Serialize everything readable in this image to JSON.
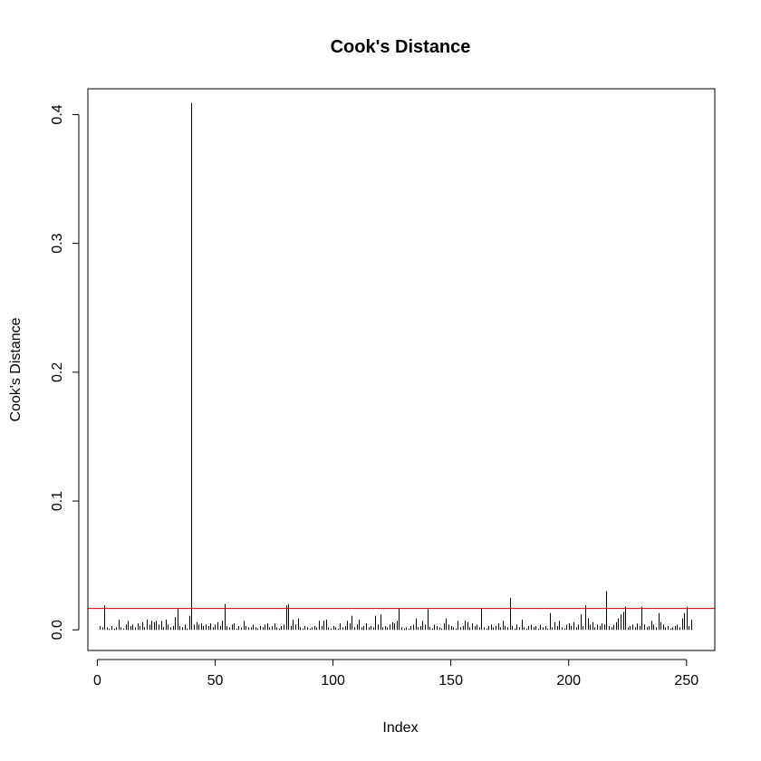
{
  "chart_data": {
    "type": "bar",
    "title": "Cook's Distance",
    "xlabel": "Index",
    "ylabel": "Cook's Distance",
    "xlim": [
      -4,
      262
    ],
    "ylim": [
      -0.016,
      0.42
    ],
    "xticks": [
      0,
      50,
      100,
      150,
      200,
      250
    ],
    "yticks": [
      0.0,
      0.1,
      0.2,
      0.3,
      0.4
    ],
    "ytick_labels": [
      "0.0",
      "0.1",
      "0.2",
      "0.3",
      "0.4"
    ],
    "grid": false,
    "threshold": {
      "value": 0.0166,
      "color": "#cc0000"
    },
    "bar_color": "#000000",
    "points": [
      [
        1,
        0.003
      ],
      [
        2,
        0.002
      ],
      [
        3,
        0.019
      ],
      [
        4,
        0.002
      ],
      [
        5,
        0.001
      ],
      [
        6,
        0.003
      ],
      [
        7,
        0.001
      ],
      [
        8,
        0.002
      ],
      [
        9,
        0.008
      ],
      [
        10,
        0.002
      ],
      [
        11,
        0.001
      ],
      [
        12,
        0.004
      ],
      [
        13,
        0.007
      ],
      [
        14,
        0.003
      ],
      [
        15,
        0.004
      ],
      [
        16,
        0.002
      ],
      [
        17,
        0.005
      ],
      [
        18,
        0.003
      ],
      [
        19,
        0.006
      ],
      [
        20,
        0.002
      ],
      [
        21,
        0.008
      ],
      [
        22,
        0.004
      ],
      [
        23,
        0.007
      ],
      [
        24,
        0.006
      ],
      [
        25,
        0.007
      ],
      [
        26,
        0.004
      ],
      [
        27,
        0.007
      ],
      [
        28,
        0.002
      ],
      [
        29,
        0.008
      ],
      [
        30,
        0.004
      ],
      [
        31,
        0.002
      ],
      [
        32,
        0.003
      ],
      [
        33,
        0.01
      ],
      [
        34,
        0.016
      ],
      [
        35,
        0.003
      ],
      [
        36,
        0.002
      ],
      [
        37,
        0.004
      ],
      [
        38,
        0.001
      ],
      [
        39,
        0.011
      ],
      [
        40,
        0.409
      ],
      [
        41,
        0.004
      ],
      [
        42,
        0.006
      ],
      [
        43,
        0.004
      ],
      [
        44,
        0.005
      ],
      [
        45,
        0.003
      ],
      [
        46,
        0.004
      ],
      [
        47,
        0.003
      ],
      [
        48,
        0.005
      ],
      [
        49,
        0.002
      ],
      [
        50,
        0.004
      ],
      [
        51,
        0.006
      ],
      [
        52,
        0.003
      ],
      [
        53,
        0.007
      ],
      [
        54,
        0.02
      ],
      [
        55,
        0.003
      ],
      [
        56,
        0.002
      ],
      [
        57,
        0.004
      ],
      [
        58,
        0.005
      ],
      [
        59,
        0.001
      ],
      [
        60,
        0.003
      ],
      [
        61,
        0.002
      ],
      [
        62,
        0.007
      ],
      [
        63,
        0.003
      ],
      [
        64,
        0.002
      ],
      [
        65,
        0.002
      ],
      [
        66,
        0.004
      ],
      [
        67,
        0.002
      ],
      [
        68,
        0.001
      ],
      [
        69,
        0.003
      ],
      [
        70,
        0.002
      ],
      [
        71,
        0.004
      ],
      [
        72,
        0.005
      ],
      [
        73,
        0.002
      ],
      [
        74,
        0.003
      ],
      [
        75,
        0.005
      ],
      [
        76,
        0.002
      ],
      [
        77,
        0.001
      ],
      [
        78,
        0.003
      ],
      [
        79,
        0.004
      ],
      [
        80,
        0.019
      ],
      [
        81,
        0.02
      ],
      [
        82,
        0.003
      ],
      [
        83,
        0.008
      ],
      [
        84,
        0.004
      ],
      [
        85,
        0.009
      ],
      [
        86,
        0.002
      ],
      [
        87,
        0.001
      ],
      [
        88,
        0.003
      ],
      [
        89,
        0.002
      ],
      [
        90,
        0.001
      ],
      [
        91,
        0.002
      ],
      [
        92,
        0.003
      ],
      [
        93,
        0.002
      ],
      [
        94,
        0.007
      ],
      [
        95,
        0.003
      ],
      [
        96,
        0.007
      ],
      [
        97,
        0.008
      ],
      [
        98,
        0.002
      ],
      [
        99,
        0.001
      ],
      [
        100,
        0.003
      ],
      [
        101,
        0.002
      ],
      [
        102,
        0.001
      ],
      [
        103,
        0.005
      ],
      [
        104,
        0.002
      ],
      [
        105,
        0.003
      ],
      [
        106,
        0.007
      ],
      [
        107,
        0.005
      ],
      [
        108,
        0.011
      ],
      [
        109,
        0.002
      ],
      [
        110,
        0.004
      ],
      [
        111,
        0.008
      ],
      [
        112,
        0.002
      ],
      [
        113,
        0.003
      ],
      [
        114,
        0.005
      ],
      [
        115,
        0.002
      ],
      [
        116,
        0.003
      ],
      [
        117,
        0.002
      ],
      [
        118,
        0.011
      ],
      [
        119,
        0.004
      ],
      [
        120,
        0.012
      ],
      [
        121,
        0.002
      ],
      [
        122,
        0.003
      ],
      [
        123,
        0.002
      ],
      [
        124,
        0.004
      ],
      [
        125,
        0.006
      ],
      [
        126,
        0.005
      ],
      [
        127,
        0.007
      ],
      [
        128,
        0.017
      ],
      [
        129,
        0.002
      ],
      [
        130,
        0.001
      ],
      [
        131,
        0.002
      ],
      [
        132,
        0.001
      ],
      [
        133,
        0.003
      ],
      [
        134,
        0.004
      ],
      [
        135,
        0.009
      ],
      [
        136,
        0.002
      ],
      [
        137,
        0.003
      ],
      [
        138,
        0.007
      ],
      [
        139,
        0.004
      ],
      [
        140,
        0.016
      ],
      [
        141,
        0.002
      ],
      [
        142,
        0.001
      ],
      [
        143,
        0.004
      ],
      [
        144,
        0.003
      ],
      [
        145,
        0.002
      ],
      [
        146,
        0.001
      ],
      [
        147,
        0.005
      ],
      [
        148,
        0.009
      ],
      [
        149,
        0.004
      ],
      [
        150,
        0.003
      ],
      [
        151,
        0.002
      ],
      [
        152,
        0.001
      ],
      [
        153,
        0.007
      ],
      [
        154,
        0.002
      ],
      [
        155,
        0.003
      ],
      [
        156,
        0.007
      ],
      [
        157,
        0.006
      ],
      [
        158,
        0.002
      ],
      [
        159,
        0.005
      ],
      [
        160,
        0.003
      ],
      [
        161,
        0.004
      ],
      [
        162,
        0.002
      ],
      [
        163,
        0.017
      ],
      [
        164,
        0.002
      ],
      [
        165,
        0.001
      ],
      [
        166,
        0.003
      ],
      [
        167,
        0.004
      ],
      [
        168,
        0.002
      ],
      [
        169,
        0.003
      ],
      [
        170,
        0.005
      ],
      [
        171,
        0.002
      ],
      [
        172,
        0.007
      ],
      [
        173,
        0.003
      ],
      [
        174,
        0.002
      ],
      [
        175,
        0.025
      ],
      [
        176,
        0.003
      ],
      [
        177,
        0.001
      ],
      [
        178,
        0.004
      ],
      [
        179,
        0.002
      ],
      [
        180,
        0.008
      ],
      [
        181,
        0.002
      ],
      [
        182,
        0.001
      ],
      [
        183,
        0.003
      ],
      [
        184,
        0.004
      ],
      [
        185,
        0.002
      ],
      [
        186,
        0.003
      ],
      [
        187,
        0.001
      ],
      [
        188,
        0.004
      ],
      [
        189,
        0.002
      ],
      [
        190,
        0.003
      ],
      [
        191,
        0.001
      ],
      [
        192,
        0.013
      ],
      [
        193,
        0.002
      ],
      [
        194,
        0.006
      ],
      [
        195,
        0.003
      ],
      [
        196,
        0.007
      ],
      [
        197,
        0.002
      ],
      [
        198,
        0.001
      ],
      [
        199,
        0.004
      ],
      [
        200,
        0.005
      ],
      [
        201,
        0.003
      ],
      [
        202,
        0.006
      ],
      [
        203,
        0.002
      ],
      [
        204,
        0.004
      ],
      [
        205,
        0.012
      ],
      [
        206,
        0.003
      ],
      [
        207,
        0.019
      ],
      [
        208,
        0.009
      ],
      [
        209,
        0.004
      ],
      [
        210,
        0.006
      ],
      [
        211,
        0.002
      ],
      [
        212,
        0.004
      ],
      [
        213,
        0.003
      ],
      [
        214,
        0.005
      ],
      [
        215,
        0.004
      ],
      [
        216,
        0.03
      ],
      [
        217,
        0.003
      ],
      [
        218,
        0.002
      ],
      [
        219,
        0.004
      ],
      [
        220,
        0.006
      ],
      [
        221,
        0.009
      ],
      [
        222,
        0.012
      ],
      [
        223,
        0.014
      ],
      [
        224,
        0.018
      ],
      [
        225,
        0.002
      ],
      [
        226,
        0.003
      ],
      [
        227,
        0.004
      ],
      [
        228,
        0.002
      ],
      [
        229,
        0.005
      ],
      [
        230,
        0.003
      ],
      [
        231,
        0.018
      ],
      [
        232,
        0.004
      ],
      [
        233,
        0.002
      ],
      [
        234,
        0.003
      ],
      [
        235,
        0.007
      ],
      [
        236,
        0.004
      ],
      [
        237,
        0.002
      ],
      [
        238,
        0.013
      ],
      [
        239,
        0.006
      ],
      [
        240,
        0.004
      ],
      [
        241,
        0.002
      ],
      [
        242,
        0.003
      ],
      [
        243,
        0.001
      ],
      [
        244,
        0.002
      ],
      [
        245,
        0.003
      ],
      [
        246,
        0.004
      ],
      [
        247,
        0.002
      ],
      [
        248,
        0.009
      ],
      [
        249,
        0.013
      ],
      [
        250,
        0.018
      ],
      [
        251,
        0.003
      ],
      [
        252,
        0.008
      ]
    ]
  }
}
